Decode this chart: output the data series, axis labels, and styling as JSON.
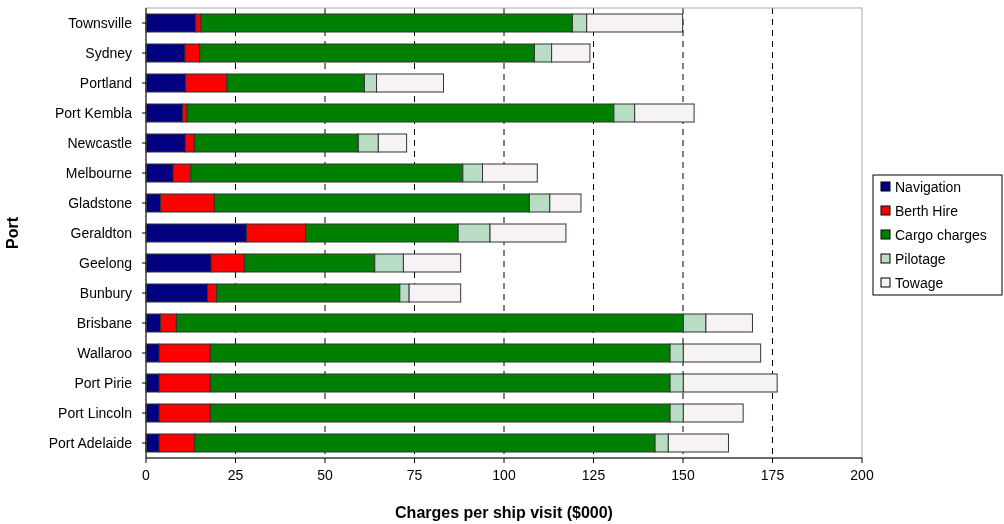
{
  "chart_data": {
    "type": "bar",
    "orientation": "horizontal",
    "stacked": true,
    "xlabel": "Charges per ship visit ($000)",
    "ylabel": "Port",
    "categories": [
      "Townsville",
      "Sydney",
      "Portland",
      "Port Kembla",
      "Newcastle",
      "Melbourne",
      "Gladstone",
      "Geraldton",
      "Geelong",
      "Bunbury",
      "Brisbane",
      "Wallaroo",
      "Port Pirie",
      "Port Lincoln",
      "Port Adelaide"
    ],
    "series": [
      {
        "name": "Navigation",
        "color": "#000080",
        "values": [
          13.9,
          10.9,
          11.1,
          10.2,
          11.0,
          7.6,
          4.1,
          28.1,
          18.2,
          17.2,
          4.1,
          3.7,
          3.7,
          3.7,
          3.7
        ]
      },
      {
        "name": "Berth Hire",
        "color": "#ff0000",
        "values": [
          1.5,
          4.1,
          11.5,
          1.3,
          2.5,
          4.9,
          15.0,
          16.5,
          9.3,
          2.5,
          4.4,
          14.3,
          14.3,
          14.3,
          9.9
        ]
      },
      {
        "name": "Cargo charges",
        "color": "#008000",
        "values": [
          103.7,
          93.5,
          38.4,
          119.2,
          45.8,
          76.0,
          88.0,
          42.6,
          36.4,
          51.2,
          141.6,
          128.4,
          128.4,
          128.4,
          128.6
        ]
      },
      {
        "name": "Pilotage",
        "color": "#b8dcc4",
        "values": [
          4.0,
          4.8,
          3.4,
          5.8,
          5.6,
          5.5,
          5.7,
          8.9,
          8.0,
          2.6,
          6.3,
          3.7,
          3.7,
          3.7,
          3.7
        ]
      },
      {
        "name": "Towage",
        "color": "#f6f2f6",
        "values": [
          26.8,
          10.7,
          18.7,
          16.6,
          7.9,
          15.3,
          8.7,
          21.2,
          16.0,
          14.4,
          13.0,
          21.6,
          26.2,
          16.7,
          16.8
        ]
      }
    ],
    "xlim": [
      0,
      200
    ],
    "xticks": [
      0,
      25,
      50,
      75,
      100,
      125,
      150,
      175,
      200
    ],
    "grid": "x",
    "legend": "right"
  }
}
